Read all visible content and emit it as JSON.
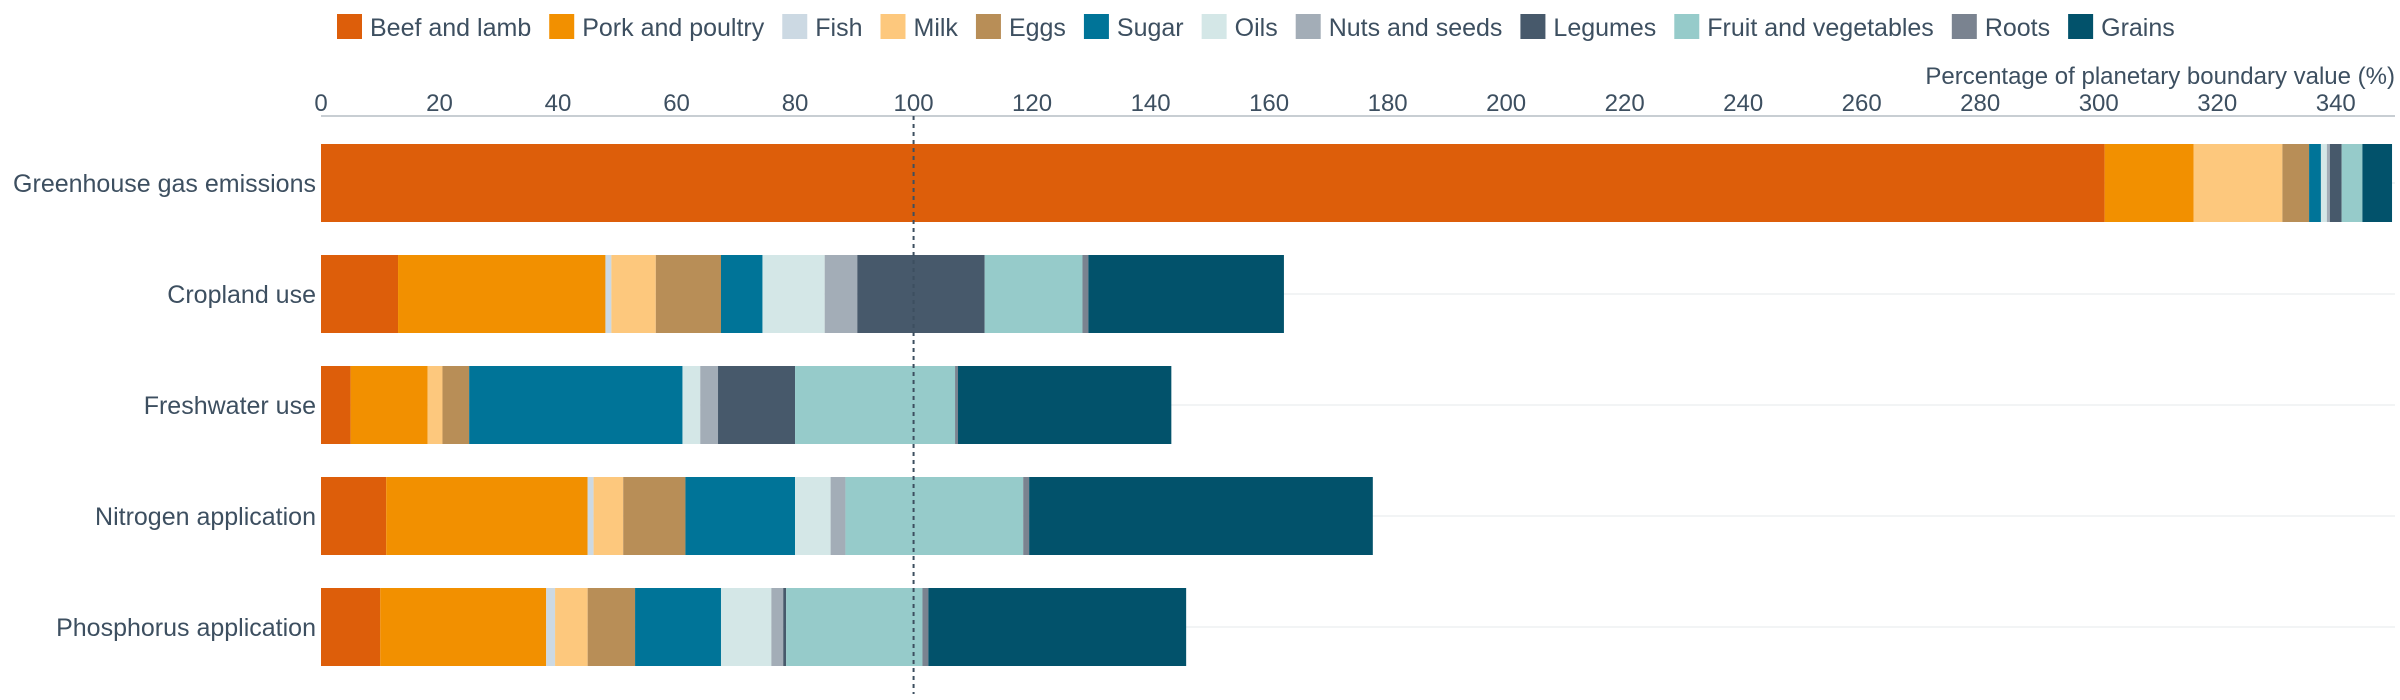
{
  "chart_data": {
    "type": "bar",
    "orientation": "horizontal",
    "stacked": true,
    "xlabel": "Percentage of planetary boundary value (%)",
    "xlim": [
      0,
      350
    ],
    "x_ticks": [
      0,
      20,
      40,
      60,
      80,
      100,
      120,
      140,
      160,
      180,
      200,
      220,
      240,
      260,
      280,
      300,
      320,
      340
    ],
    "reference_line": 100,
    "grid": "horizontal row lines",
    "legend_position": "top",
    "categories": [
      "Greenhouse gas emissions",
      "Cropland use",
      "Freshwater use",
      "Nitrogen application",
      "Phosphorus application"
    ],
    "series": [
      {
        "name": "Beef and lamb",
        "color": "#dd5e0a",
        "values": [
          301.0,
          13.0,
          5.0,
          11.0,
          10.0
        ]
      },
      {
        "name": "Pork and poultry",
        "color": "#f29000",
        "values": [
          15.0,
          35.0,
          13.0,
          34.0,
          28.0
        ]
      },
      {
        "name": "Fish",
        "color": "#ccd9e3",
        "values": [
          0.0,
          1.0,
          0.0,
          1.0,
          1.5
        ]
      },
      {
        "name": "Milk",
        "color": "#fdc87d",
        "values": [
          15.0,
          7.5,
          2.5,
          5.0,
          5.5
        ]
      },
      {
        "name": "Eggs",
        "color": "#b88e57",
        "values": [
          4.5,
          11.0,
          4.5,
          10.5,
          8.0
        ]
      },
      {
        "name": "Sugar",
        "color": "#007498",
        "values": [
          2.0,
          7.0,
          36.0,
          18.5,
          14.5
        ]
      },
      {
        "name": "Oils",
        "color": "#d4e7e7",
        "values": [
          1.0,
          10.5,
          3.0,
          6.0,
          8.5
        ]
      },
      {
        "name": "Nuts and seeds",
        "color": "#a3adb7",
        "values": [
          0.5,
          5.5,
          3.0,
          2.5,
          2.0
        ]
      },
      {
        "name": "Legumes",
        "color": "#47596b",
        "values": [
          2.0,
          21.5,
          13.0,
          0.0,
          0.5
        ]
      },
      {
        "name": "Fruit and vegetables",
        "color": "#96cbca",
        "values": [
          3.5,
          16.5,
          27.0,
          30.0,
          23.0
        ]
      },
      {
        "name": "Roots",
        "color": "#7a8390",
        "values": [
          0.0,
          1.0,
          0.5,
          1.0,
          1.0
        ]
      },
      {
        "name": "Grains",
        "color": "#02526b",
        "values": [
          5.0,
          33.0,
          36.0,
          58.0,
          43.5
        ]
      }
    ]
  }
}
